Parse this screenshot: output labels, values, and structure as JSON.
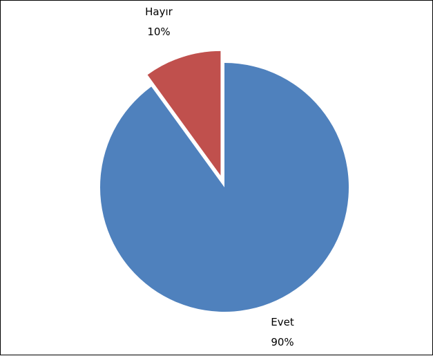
{
  "chart_data": {
    "type": "pie",
    "categories": [
      "Evet",
      "Hayır"
    ],
    "values": [
      90,
      10
    ],
    "value_labels": [
      "90%",
      "10%"
    ],
    "colors": [
      "#4F81BD",
      "#C0504D"
    ],
    "exploded": [
      false,
      true
    ],
    "start_angle": "12 o'clock, clockwise",
    "legend": "none"
  }
}
